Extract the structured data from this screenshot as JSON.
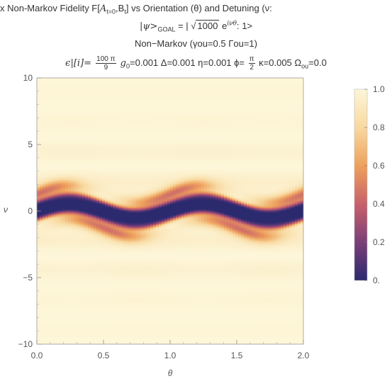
{
  "title": {
    "line1_prefix": "x Non-Markov Fidelity F[",
    "line1_A": "A",
    "line1_Asub": "t=0",
    "line1_B": ",B",
    "line1_Bsub": "t",
    "line1_suffix": "] vs Orientation (θ) and Detuning (ν:",
    "line2_ket_open": "|ψ>",
    "line2_goal": "GOAL",
    "line2_eq": " = | ",
    "line2_sqrt": "1000",
    "line2_exp_base": " e",
    "line2_exp": "iνθ",
    "line2_tail": ": 1>",
    "line3": "Non−Markov (γou=0.5 Γou=1)",
    "line4_eps": "ϵ|[i]= ",
    "line4_frac1_num": "100 π",
    "line4_frac1_den": "9",
    "line4_g0": " g",
    "line4_g0sub": "0",
    "line4_g0val": "=0.001 Δ=0.001 η=0.001 ϕ= ",
    "line4_frac2_num": "π",
    "line4_frac2_den": "2",
    "line4_kappa": " κ=0.005 Ω",
    "line4_omsub": "ou",
    "line4_omval": "=0.0"
  },
  "chart_data": {
    "type": "heatmap",
    "xlabel": "θ",
    "ylabel": "ν",
    "xlim": [
      0.0,
      2.0
    ],
    "ylim": [
      -10,
      10
    ],
    "x_ticks": [
      0.0,
      0.5,
      1.0,
      1.5,
      2.0
    ],
    "x_tick_labels": [
      "0.0",
      "0.5",
      "1.0",
      "1.5",
      "2.0"
    ],
    "y_ticks": [
      -10,
      -5,
      0,
      5,
      10
    ],
    "y_tick_labels": [
      "−10",
      "−5",
      "0",
      "5",
      "10"
    ],
    "colorbar": {
      "range": [
        0.0,
        1.0
      ],
      "ticks": [
        0.0,
        0.2,
        0.4,
        0.6,
        0.8,
        1.0
      ],
      "tick_labels": [
        "0.",
        "0.2",
        "0.4",
        "0.6",
        "0.8",
        "1.0"
      ],
      "colors": [
        "#2b2a6e",
        "#7b3f78",
        "#c8616b",
        "#eea05c",
        "#f8d9a0",
        "#fdf6d8"
      ]
    },
    "description_values": {
      "dark_band_center_nu": 0.0,
      "dark_band_oscillation_amplitude_nu": 0.6,
      "dark_band_oscillation_period_theta": 1.0
    }
  }
}
